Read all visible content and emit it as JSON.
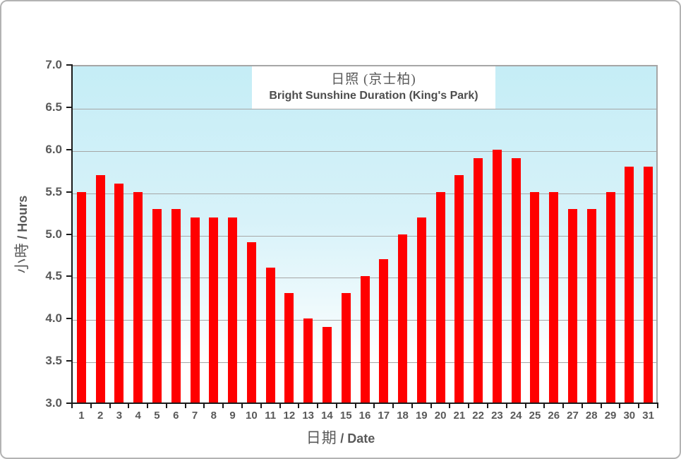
{
  "chart_data": {
    "type": "bar",
    "title_zh": "日照 (京士柏)",
    "title_en": "Bright Sunshine Duration (King's Park)",
    "ylabel_zh": "小時",
    "ylabel_en": "/ Hours",
    "xlabel_zh": "日期",
    "xlabel_en": "/ Date",
    "categories": [
      1,
      2,
      3,
      4,
      5,
      6,
      7,
      8,
      9,
      10,
      11,
      12,
      13,
      14,
      15,
      16,
      17,
      18,
      19,
      20,
      21,
      22,
      23,
      24,
      25,
      26,
      27,
      28,
      29,
      30,
      31
    ],
    "values": [
      5.5,
      5.7,
      5.6,
      5.5,
      5.3,
      5.3,
      5.2,
      5.2,
      5.2,
      4.9,
      4.6,
      4.3,
      4.0,
      3.9,
      4.3,
      4.5,
      4.7,
      5.0,
      5.2,
      5.5,
      5.7,
      5.9,
      6.0,
      5.9,
      5.5,
      5.5,
      5.3,
      5.3,
      5.5,
      5.8,
      5.8
    ],
    "ylim": [
      3.0,
      7.0
    ],
    "ytick_step": 0.5,
    "ytick_labels": [
      "3.0",
      "3.5",
      "4.0",
      "4.5",
      "5.0",
      "5.5",
      "6.0",
      "6.5",
      "7.0"
    ],
    "grid": true,
    "legend_position": "none",
    "bar_color": "#ff0000",
    "plot_bg_top": "#c5edf6",
    "plot_bg_bottom": "#ffffff",
    "gridline_color": "#a6a6a6",
    "axis_color": "#1a1a1a",
    "text_color": "#595959"
  }
}
